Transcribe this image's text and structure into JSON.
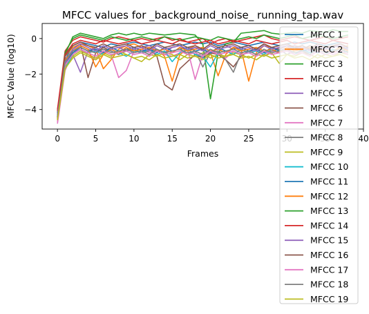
{
  "chart_data": {
    "type": "line",
    "title": "MFCC values for _background_noise_ running_tap.wav",
    "xlabel": "Frames",
    "ylabel": "MFCC Value (log10)",
    "xlim": [
      -2,
      40
    ],
    "ylim": [
      -5.1,
      0.85
    ],
    "xticks": [
      0,
      5,
      10,
      15,
      20,
      25,
      30,
      35,
      40
    ],
    "yticks": [
      -4,
      -2,
      0
    ],
    "xtick_labels": [
      "0",
      "5",
      "10",
      "15",
      "20",
      "25",
      "30",
      "35",
      "40"
    ],
    "ytick_labels": [
      "−4",
      "−2",
      "0"
    ],
    "grid": false,
    "legend_position": "right",
    "x": [
      0,
      1,
      2,
      3,
      4,
      5,
      6,
      7,
      8,
      9,
      10,
      11,
      12,
      13,
      14,
      15,
      16,
      17,
      18,
      19,
      20,
      21,
      22,
      23,
      24,
      25,
      26,
      27,
      28,
      29,
      30,
      31,
      32,
      33,
      34,
      35,
      36,
      37,
      38
    ],
    "series": [
      {
        "name": "MFCC 1",
        "color": "#1f77b4",
        "values": [
          -4.4,
          -1.2,
          -0.4,
          -0.2,
          -0.3,
          -0.4,
          -0.5,
          -0.3,
          -0.4,
          -0.3,
          -0.2,
          -0.3,
          -0.4,
          -0.3,
          -0.2,
          -0.3,
          -0.4,
          -0.3,
          -0.2,
          -0.3,
          -0.2,
          -0.4,
          -0.3,
          -0.2,
          -0.3,
          -0.4,
          -0.3,
          -0.2,
          -0.3,
          -0.4,
          -0.3,
          -0.2,
          -0.3,
          -0.2,
          -0.3,
          -0.4,
          -0.3,
          -0.2,
          -0.3
        ]
      },
      {
        "name": "MFCC 2",
        "color": "#ff7f0e",
        "values": [
          -4.2,
          -1.0,
          -0.5,
          -0.3,
          -0.4,
          -0.6,
          -1.7,
          -1.2,
          -0.6,
          -0.4,
          -0.3,
          -0.5,
          -0.4,
          -0.6,
          -1.0,
          -2.4,
          -0.9,
          -0.6,
          -0.4,
          -0.6,
          -0.8,
          -2.1,
          -0.9,
          -0.5,
          -0.6,
          -2.4,
          -0.8,
          -0.4,
          -0.5,
          -0.7,
          -0.6,
          -0.4,
          -0.5,
          -0.6,
          -0.4,
          -0.5,
          -0.7,
          -0.5,
          -0.4
        ]
      },
      {
        "name": "MFCC 3",
        "color": "#2ca02c",
        "values": [
          -4.6,
          -0.9,
          0.1,
          0.3,
          0.2,
          0.1,
          0.0,
          0.2,
          0.3,
          0.2,
          0.3,
          0.2,
          0.3,
          0.25,
          0.2,
          0.25,
          0.3,
          0.25,
          0.2,
          -0.3,
          -3.4,
          -0.8,
          -0.3,
          -0.2,
          0.3,
          0.35,
          0.4,
          0.45,
          0.3,
          0.25,
          0.3,
          0.35,
          0.3,
          0.45,
          0.4,
          0.35,
          0.5,
          0.4,
          0.4
        ]
      },
      {
        "name": "MFCC 4",
        "color": "#d62728",
        "values": [
          -4.0,
          -0.7,
          -0.1,
          0.1,
          0.0,
          -0.1,
          -0.2,
          0.0,
          0.1,
          0.0,
          -0.1,
          0.0,
          -0.1,
          0.0,
          0.1,
          -0.1,
          0.0,
          -0.2,
          -0.1,
          0.0,
          -0.3,
          -0.1,
          0.0,
          -0.2,
          -0.1,
          0.0,
          0.1,
          0.2,
          0.0,
          -0.1,
          0.0,
          0.1,
          0.0,
          -0.1,
          0.0,
          0.1,
          -0.1,
          0.0,
          0.1
        ]
      },
      {
        "name": "MFCC 5",
        "color": "#9467bd",
        "values": [
          -4.3,
          -1.1,
          -0.9,
          -1.9,
          -0.7,
          -0.5,
          -0.8,
          -0.6,
          -0.5,
          -0.7,
          -0.6,
          -0.5,
          -0.4,
          -0.6,
          -0.8,
          -0.5,
          -0.4,
          -0.7,
          -0.5,
          -0.6,
          -0.9,
          -0.5,
          -0.4,
          -0.6,
          -0.5,
          -0.4,
          -0.6,
          -0.3,
          -0.5,
          -0.7,
          -0.5,
          -0.4,
          -0.6,
          -0.5,
          -0.4,
          -0.6,
          -0.5,
          -0.3,
          -0.5
        ]
      },
      {
        "name": "MFCC 6",
        "color": "#8c564b",
        "values": [
          -4.5,
          -1.3,
          -0.6,
          -0.3,
          -2.2,
          -0.8,
          -0.5,
          -0.7,
          -0.9,
          -0.6,
          -0.7,
          -0.8,
          -0.6,
          -1.0,
          -2.6,
          -2.9,
          -1.7,
          -1.3,
          -0.9,
          -1.1,
          -0.8,
          -0.9,
          -1.2,
          -1.6,
          -1.0,
          -0.7,
          -0.6,
          -0.3,
          -0.5,
          -0.6,
          -0.4,
          -0.5,
          -0.6,
          -0.4,
          -0.5,
          -0.6,
          -0.4,
          -0.5,
          -0.6
        ]
      },
      {
        "name": "MFCC 7",
        "color": "#e377c2",
        "values": [
          -4.8,
          -1.8,
          -0.8,
          -0.6,
          -0.9,
          -1.2,
          -0.7,
          -0.9,
          -2.2,
          -1.8,
          -0.7,
          -0.6,
          -0.8,
          -0.7,
          -0.9,
          -1.0,
          -0.8,
          -0.6,
          -2.3,
          -0.9,
          -0.7,
          -0.8,
          -1.1,
          -0.7,
          -0.9,
          -0.8,
          -0.6,
          -1.0,
          -0.7,
          -0.8,
          -0.6,
          -0.9,
          -0.7,
          -0.8,
          -0.6,
          -0.7,
          -0.9,
          -0.8,
          -0.7
        ]
      },
      {
        "name": "MFCC 8",
        "color": "#7f7f7f",
        "values": [
          -4.4,
          -1.4,
          -0.7,
          -0.4,
          -0.6,
          -0.8,
          -0.6,
          -0.7,
          -0.9,
          -0.7,
          -0.6,
          -0.8,
          -0.7,
          -0.6,
          -0.8,
          -0.7,
          -0.6,
          -0.9,
          -0.7,
          -1.6,
          -0.8,
          -0.7,
          -1.2,
          -1.9,
          -0.8,
          -0.7,
          -0.6,
          -0.8,
          -0.7,
          -0.6,
          -0.9,
          -0.7,
          -0.6,
          -0.8,
          -0.7,
          -0.6,
          -0.8,
          -0.7,
          -0.6
        ]
      },
      {
        "name": "MFCC 9",
        "color": "#bcbd22",
        "values": [
          -4.6,
          -1.6,
          -1.0,
          -0.7,
          -0.9,
          -1.1,
          -0.8,
          -1.0,
          -0.7,
          -0.9,
          -1.1,
          -1.3,
          -0.9,
          -1.0,
          -0.8,
          -0.9,
          -1.2,
          -0.9,
          -1.0,
          -0.8,
          -1.1,
          -0.9,
          -1.0,
          -0.8,
          -0.9,
          -1.1,
          -0.9,
          -1.0,
          -0.8,
          -1.4,
          -0.9,
          -1.0,
          -0.8,
          -0.9,
          -1.1,
          -0.9,
          -1.0,
          -0.8,
          -0.9
        ]
      },
      {
        "name": "MFCC 10",
        "color": "#17becf",
        "values": [
          -4.3,
          -1.7,
          -0.9,
          -0.6,
          -0.8,
          -0.7,
          -0.9,
          -0.6,
          -0.8,
          -1.0,
          -0.7,
          -0.8,
          -0.6,
          -0.9,
          -0.7,
          -1.3,
          -0.8,
          -0.6,
          -0.9,
          -1.0,
          -1.6,
          -0.8,
          -0.7,
          -0.9,
          -0.6,
          -0.8,
          -0.7,
          -0.9,
          -0.6,
          -0.8,
          -0.7,
          -0.9,
          -0.6,
          -0.8,
          -0.7,
          -0.9,
          -0.6,
          -0.8,
          -0.7
        ]
      },
      {
        "name": "MFCC 11",
        "color": "#1f77b4",
        "values": [
          -4.2,
          -1.5,
          -0.8,
          -0.5,
          -0.7,
          -0.6,
          -0.8,
          -0.5,
          -0.7,
          -0.6,
          -0.5,
          -0.7,
          -0.6,
          -0.8,
          -0.5,
          -0.7,
          -0.6,
          -0.5,
          -0.7,
          -0.6,
          -0.8,
          -0.5,
          -0.7,
          -0.6,
          -0.5,
          -0.7,
          -0.6,
          -0.8,
          -0.5,
          -0.7,
          -0.6,
          -0.5,
          -0.7,
          -0.6,
          -0.8,
          -0.5,
          -0.7,
          -0.6,
          -0.5
        ]
      },
      {
        "name": "MFCC 12",
        "color": "#ff7f0e",
        "values": [
          -4.5,
          -1.2,
          -0.7,
          -0.4,
          -0.6,
          -1.6,
          -0.9,
          -0.6,
          -0.8,
          -0.5,
          -0.7,
          -0.6,
          -0.5,
          -0.7,
          -0.6,
          -0.8,
          -0.5,
          -0.7,
          -0.6,
          -0.5,
          -0.7,
          -0.6,
          -0.8,
          -0.5,
          -0.7,
          -0.6,
          -0.5,
          -0.7,
          -0.6,
          -0.8,
          -0.5,
          -0.7,
          -0.6,
          -0.5,
          -0.7,
          -0.6,
          -0.8,
          -0.5,
          -0.7
        ]
      },
      {
        "name": "MFCC 13",
        "color": "#2ca02c",
        "values": [
          -4.4,
          -0.8,
          0.0,
          0.2,
          0.1,
          0.0,
          -0.1,
          0.1,
          0.0,
          -0.1,
          0.0,
          0.1,
          0.0,
          -0.1,
          0.1,
          0.0,
          -0.1,
          0.0,
          0.1,
          0.0,
          -0.1,
          0.1,
          0.0,
          -0.1,
          0.0,
          0.1,
          0.0,
          0.2,
          0.1,
          0.0,
          0.1,
          0.2,
          0.0,
          0.1,
          0.2,
          0.1,
          0.0,
          0.1,
          0.2
        ]
      },
      {
        "name": "MFCC 14",
        "color": "#d62728",
        "values": [
          -4.1,
          -0.9,
          -0.3,
          -0.1,
          -0.2,
          -0.3,
          -0.1,
          -0.2,
          -0.3,
          -0.2,
          -0.1,
          -0.3,
          -0.2,
          -0.1,
          -0.2,
          -0.3,
          -0.1,
          -0.2,
          -0.3,
          -0.2,
          -0.1,
          -0.3,
          -0.2,
          -0.1,
          -0.2,
          -0.3,
          -0.1,
          -0.2,
          -0.3,
          -0.2,
          -0.1,
          -0.3,
          -0.2,
          -0.1,
          -0.2,
          -0.3,
          -0.1,
          -0.2,
          -0.3
        ]
      },
      {
        "name": "MFCC 15",
        "color": "#9467bd",
        "values": [
          -4.3,
          -1.4,
          -0.6,
          -0.3,
          -0.5,
          -0.7,
          -0.4,
          -0.6,
          -0.5,
          -0.4,
          -0.6,
          -0.5,
          -0.7,
          -0.4,
          -0.6,
          -0.5,
          -0.4,
          -0.6,
          -0.5,
          -0.7,
          -0.4,
          -0.6,
          -0.5,
          -0.4,
          -0.6,
          -0.5,
          -0.7,
          -0.4,
          -0.6,
          -0.5,
          -0.4,
          -0.6,
          -0.5,
          -0.7,
          -0.4,
          -0.6,
          -0.5,
          -0.4,
          -0.6
        ]
      },
      {
        "name": "MFCC 16",
        "color": "#8c564b",
        "values": [
          -4.5,
          -1.0,
          -0.4,
          -0.2,
          -0.4,
          -0.5,
          -0.3,
          -0.5,
          -0.4,
          -0.3,
          -0.5,
          -0.4,
          -0.6,
          -0.3,
          -0.5,
          -0.4,
          -0.3,
          -0.5,
          -0.4,
          -0.6,
          -0.3,
          -0.5,
          -0.4,
          -0.3,
          -0.5,
          -0.4,
          -0.6,
          -0.3,
          -0.5,
          -0.4,
          -0.3,
          -0.5,
          -0.4,
          -0.6,
          -0.3,
          -0.5,
          -0.4,
          -0.3,
          -0.5
        ]
      },
      {
        "name": "MFCC 17",
        "color": "#e377c2",
        "values": [
          -4.7,
          -1.5,
          -0.9,
          -0.6,
          -0.8,
          -1.0,
          -0.7,
          -0.9,
          -0.8,
          -0.7,
          -0.9,
          -0.8,
          -1.0,
          -0.7,
          -0.9,
          -0.8,
          -0.7,
          -0.9,
          -0.8,
          -1.0,
          -0.7,
          -0.9,
          -0.8,
          -0.7,
          -0.9,
          -0.8,
          -1.0,
          -0.7,
          -0.9,
          -0.8,
          -0.7,
          -0.9,
          -0.8,
          -1.0,
          -0.7,
          -0.9,
          -0.8,
          -0.7,
          -0.9
        ]
      },
      {
        "name": "MFCC 18",
        "color": "#7f7f7f",
        "values": [
          -4.4,
          -1.3,
          -0.7,
          -0.5,
          -0.7,
          -0.8,
          -0.6,
          -0.8,
          -0.7,
          -0.6,
          -0.8,
          -0.7,
          -0.9,
          -0.6,
          -0.8,
          -0.7,
          -0.6,
          -0.8,
          -0.7,
          -0.9,
          -0.6,
          -0.8,
          -0.7,
          -0.6,
          -0.8,
          -0.7,
          -0.9,
          -0.6,
          -0.8,
          -0.7,
          -0.6,
          -0.8,
          -0.7,
          -0.9,
          -0.6,
          -0.8,
          -0.7,
          -0.6,
          -0.8
        ]
      },
      {
        "name": "MFCC 19",
        "color": "#bcbd22",
        "values": [
          -4.6,
          -1.7,
          -1.1,
          -0.8,
          -1.0,
          -1.2,
          -0.9,
          -1.1,
          -1.0,
          -0.9,
          -1.1,
          -1.0,
          -1.2,
          -0.9,
          -1.1,
          -1.0,
          -0.9,
          -1.1,
          -1.0,
          -1.2,
          -0.9,
          -1.1,
          -1.0,
          -0.9,
          -1.1,
          -1.0,
          -1.2,
          -0.9,
          -1.1,
          -1.0,
          -0.9,
          -1.1,
          -1.0,
          -1.2,
          -0.9,
          -1.1,
          -1.0,
          -0.9,
          -1.1
        ]
      }
    ]
  }
}
